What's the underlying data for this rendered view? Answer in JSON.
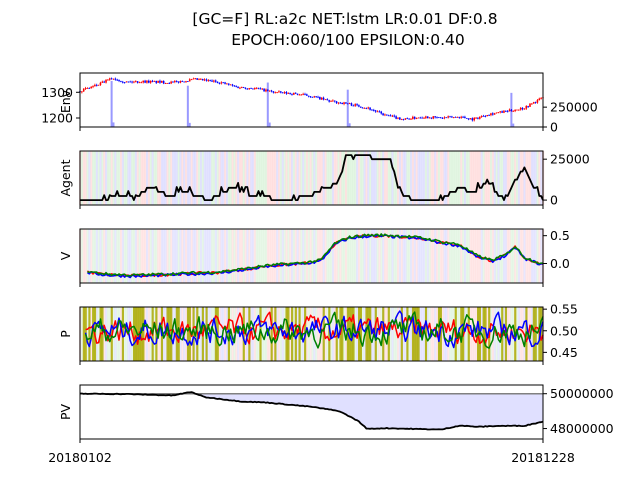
{
  "title": {
    "line1": "[GC=F] RL:a2c NET:lstm LR:0.01 DF:0.8",
    "line2": "EPOCH:060/100 EPSILON:0.40"
  },
  "x_ticks": [
    "20180102",
    "20181228"
  ],
  "colors": {
    "up_candle": "#ff0000",
    "down_candle": "#0000ff",
    "volume": "#9999ff",
    "agent_line": "#000000",
    "v_series": [
      "#ff0000",
      "#0000ff",
      "#008000"
    ],
    "p_series": [
      "#ff0000",
      "#0000ff",
      "#008000"
    ],
    "exploration": "#aaaa00",
    "bg_buy": "#ffcccc",
    "bg_sell": "#ccccff",
    "bg_hold": "#cceecc",
    "pv_fill": "#e0e0ff"
  },
  "chart_data": [
    {
      "panel": "env",
      "type": "candlestick",
      "ylabel": "Env.",
      "left_ticks": [
        "1200",
        "1300"
      ],
      "right_ticks": [
        "0",
        "250000"
      ],
      "ylim_price": [
        1165,
        1375
      ],
      "ylim_volume": [
        0,
        680000
      ],
      "price_keypoints": [
        [
          0,
          1305
        ],
        [
          0.04,
          1330
        ],
        [
          0.07,
          1355
        ],
        [
          0.1,
          1340
        ],
        [
          0.14,
          1342
        ],
        [
          0.2,
          1338
        ],
        [
          0.25,
          1350
        ],
        [
          0.3,
          1340
        ],
        [
          0.34,
          1320
        ],
        [
          0.38,
          1315
        ],
        [
          0.42,
          1300
        ],
        [
          0.46,
          1295
        ],
        [
          0.5,
          1285
        ],
        [
          0.54,
          1265
        ],
        [
          0.58,
          1255
        ],
        [
          0.62,
          1240
        ],
        [
          0.66,
          1210
        ],
        [
          0.7,
          1195
        ],
        [
          0.74,
          1205
        ],
        [
          0.78,
          1200
        ],
        [
          0.82,
          1205
        ],
        [
          0.85,
          1195
        ],
        [
          0.88,
          1215
        ],
        [
          0.92,
          1225
        ],
        [
          0.96,
          1240
        ],
        [
          1.0,
          1280
        ]
      ],
      "volume_spikes": [
        [
          0.07,
          580000
        ],
        [
          0.232,
          520000
        ],
        [
          0.405,
          560000
        ],
        [
          0.578,
          470000
        ],
        [
          0.93,
          430000
        ]
      ]
    },
    {
      "panel": "agent",
      "type": "line",
      "ylabel": "Agent",
      "right_ticks": [
        "0",
        "25000"
      ],
      "ylim": [
        -3000,
        30000
      ],
      "keypoints": [
        [
          0,
          0
        ],
        [
          0.05,
          0
        ],
        [
          0.09,
          3000
        ],
        [
          0.12,
          1000
        ],
        [
          0.15,
          8000
        ],
        [
          0.19,
          3000
        ],
        [
          0.23,
          5000
        ],
        [
          0.28,
          0
        ],
        [
          0.33,
          8000
        ],
        [
          0.38,
          2000
        ],
        [
          0.42,
          1000
        ],
        [
          0.45,
          0
        ],
        [
          0.5,
          3000
        ],
        [
          0.54,
          8000
        ],
        [
          0.56,
          12000
        ],
        [
          0.575,
          28000
        ],
        [
          0.59,
          26000
        ],
        [
          0.61,
          28000
        ],
        [
          0.64,
          25000
        ],
        [
          0.67,
          25000
        ],
        [
          0.69,
          5000
        ],
        [
          0.72,
          0
        ],
        [
          0.78,
          0
        ],
        [
          0.82,
          8000
        ],
        [
          0.85,
          4000
        ],
        [
          0.88,
          12000
        ],
        [
          0.9,
          4000
        ],
        [
          0.92,
          0
        ],
        [
          0.94,
          12000
        ],
        [
          0.96,
          20000
        ],
        [
          0.98,
          8000
        ],
        [
          1.0,
          0
        ]
      ]
    },
    {
      "panel": "value",
      "type": "line",
      "ylabel": "V",
      "right_ticks": [
        "0.0",
        "0.5"
      ],
      "ylim": [
        -0.35,
        0.62
      ],
      "keypoints": [
        [
          0,
          -0.05
        ],
        [
          0.02,
          -0.16
        ],
        [
          0.06,
          -0.2
        ],
        [
          0.12,
          -0.22
        ],
        [
          0.18,
          -0.2
        ],
        [
          0.24,
          -0.18
        ],
        [
          0.3,
          -0.16
        ],
        [
          0.36,
          -0.1
        ],
        [
          0.4,
          -0.05
        ],
        [
          0.44,
          -0.02
        ],
        [
          0.48,
          0.0
        ],
        [
          0.52,
          0.05
        ],
        [
          0.55,
          0.35
        ],
        [
          0.58,
          0.46
        ],
        [
          0.62,
          0.5
        ],
        [
          0.66,
          0.5
        ],
        [
          0.7,
          0.48
        ],
        [
          0.74,
          0.45
        ],
        [
          0.78,
          0.38
        ],
        [
          0.82,
          0.33
        ],
        [
          0.86,
          0.12
        ],
        [
          0.89,
          0.05
        ],
        [
          0.92,
          0.15
        ],
        [
          0.94,
          0.3
        ],
        [
          0.96,
          0.1
        ],
        [
          1.0,
          -0.02
        ]
      ],
      "series_offsets": [
        0.0,
        -0.01,
        0.01
      ]
    },
    {
      "panel": "policy",
      "type": "line",
      "ylabel": "P",
      "right_ticks": [
        "0.45",
        "0.50",
        "0.55"
      ],
      "ylim": [
        0.43,
        0.555
      ],
      "center": 0.5
    },
    {
      "panel": "portfolio",
      "type": "area",
      "ylabel": "PV",
      "right_ticks": [
        "48000000",
        "50000000"
      ],
      "ylim": [
        47400000,
        50500000
      ],
      "baseline": 50000000,
      "keypoints": [
        [
          0,
          50000000
        ],
        [
          0.1,
          49980000
        ],
        [
          0.2,
          49900000
        ],
        [
          0.24,
          50100000
        ],
        [
          0.27,
          49800000
        ],
        [
          0.35,
          49550000
        ],
        [
          0.4,
          49500000
        ],
        [
          0.5,
          49250000
        ],
        [
          0.56,
          49000000
        ],
        [
          0.6,
          48450000
        ],
        [
          0.62,
          47980000
        ],
        [
          0.66,
          48020000
        ],
        [
          0.72,
          47980000
        ],
        [
          0.78,
          47940000
        ],
        [
          0.82,
          48170000
        ],
        [
          0.86,
          48100000
        ],
        [
          0.9,
          48150000
        ],
        [
          0.96,
          48160000
        ],
        [
          1.0,
          48400000
        ]
      ]
    }
  ]
}
